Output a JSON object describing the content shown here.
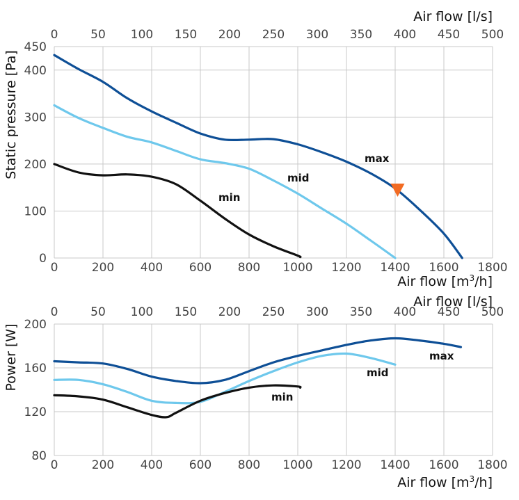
{
  "chart_data": [
    {
      "type": "line",
      "title": "",
      "xlabel": "Air flow [m³/h]",
      "x2label": "Air flow [l/s]",
      "ylabel": "Static pressure [Pa]",
      "xlim": [
        0,
        1800
      ],
      "ylim": [
        0,
        450
      ],
      "xticks": [
        0,
        200,
        400,
        600,
        800,
        1000,
        1200,
        1400,
        1600,
        1800
      ],
      "x2ticks": [
        0,
        50,
        100,
        150,
        200,
        250,
        300,
        350,
        400,
        450,
        500
      ],
      "yticks": [
        0,
        100,
        200,
        300,
        400,
        450
      ],
      "grid": true,
      "series": [
        {
          "name": "max",
          "color": "#0e4f96",
          "x": [
            0,
            100,
            200,
            300,
            400,
            500,
            600,
            700,
            800,
            900,
            1000,
            1100,
            1200,
            1300,
            1400,
            1500,
            1600,
            1675
          ],
          "y": [
            432,
            402,
            375,
            340,
            312,
            288,
            265,
            252,
            252,
            253,
            242,
            225,
            205,
            180,
            148,
            103,
            52,
            0
          ]
        },
        {
          "name": "mid",
          "color": "#6ec8ec",
          "x": [
            0,
            100,
            200,
            300,
            400,
            500,
            600,
            700,
            800,
            900,
            1000,
            1100,
            1200,
            1300,
            1400
          ],
          "y": [
            325,
            298,
            277,
            258,
            246,
            228,
            210,
            202,
            190,
            165,
            137,
            105,
            73,
            37,
            0
          ]
        },
        {
          "name": "min",
          "color": "#111111",
          "x": [
            0,
            100,
            200,
            300,
            400,
            500,
            600,
            700,
            800,
            900,
            1000,
            1010
          ],
          "y": [
            200,
            182,
            176,
            178,
            173,
            157,
            122,
            84,
            50,
            25,
            5,
            2
          ]
        }
      ],
      "annotations": [
        {
          "type": "marker",
          "shape": "triangle-down",
          "color": "#f26b23",
          "x": 1410,
          "y": 145
        }
      ]
    },
    {
      "type": "line",
      "title": "",
      "xlabel": "Air flow [m³/h]",
      "x2label": "Air flow [l/s]",
      "ylabel": "Power [W]",
      "xlim": [
        0,
        1800
      ],
      "ylim": [
        80,
        200
      ],
      "xticks": [
        0,
        200,
        400,
        600,
        800,
        1000,
        1200,
        1400,
        1600,
        1800
      ],
      "x2ticks": [
        0,
        50,
        100,
        150,
        200,
        250,
        300,
        350,
        400,
        450,
        500
      ],
      "yticks": [
        80,
        120,
        160,
        200
      ],
      "grid": true,
      "series": [
        {
          "name": "max",
          "color": "#0e4f96",
          "x": [
            0,
            100,
            200,
            300,
            400,
            500,
            600,
            700,
            800,
            900,
            1000,
            1100,
            1200,
            1300,
            1400,
            1500,
            1600,
            1670
          ],
          "y": [
            166,
            165,
            164,
            159,
            152,
            148,
            146,
            149,
            157,
            165,
            171,
            176,
            181,
            185,
            187,
            185,
            182,
            179
          ]
        },
        {
          "name": "mid",
          "color": "#6ec8ec",
          "x": [
            0,
            100,
            200,
            300,
            400,
            500,
            600,
            700,
            800,
            900,
            1000,
            1100,
            1200,
            1300,
            1400
          ],
          "y": [
            149,
            149,
            145,
            138,
            130,
            128,
            129,
            138,
            148,
            157,
            165,
            171,
            173,
            169,
            163
          ]
        },
        {
          "name": "min",
          "color": "#111111",
          "x": [
            0,
            100,
            200,
            300,
            400,
            460,
            500,
            600,
            700,
            800,
            900,
            1000,
            1010
          ],
          "y": [
            135,
            134,
            131,
            124,
            117,
            115,
            119,
            130,
            137,
            142,
            144,
            143,
            142
          ]
        }
      ]
    }
  ],
  "labels": {
    "top": {
      "x2title": "Air flow [l/s]",
      "xtitle_main": "Air flow [m",
      "xtitle_sup": "3",
      "xtitle_end": "/h]",
      "ytitle": "Static pressure [Pa]",
      "series": {
        "max": "max",
        "mid": "mid",
        "min": "min"
      }
    },
    "bottom": {
      "x2title": "Air flow [l/s]",
      "xtitle_main": "Air flow [m",
      "xtitle_sup": "3",
      "xtitle_end": "/h]",
      "ytitle": "Power [W]",
      "series": {
        "max": "max",
        "mid": "mid",
        "min": "min"
      }
    }
  }
}
